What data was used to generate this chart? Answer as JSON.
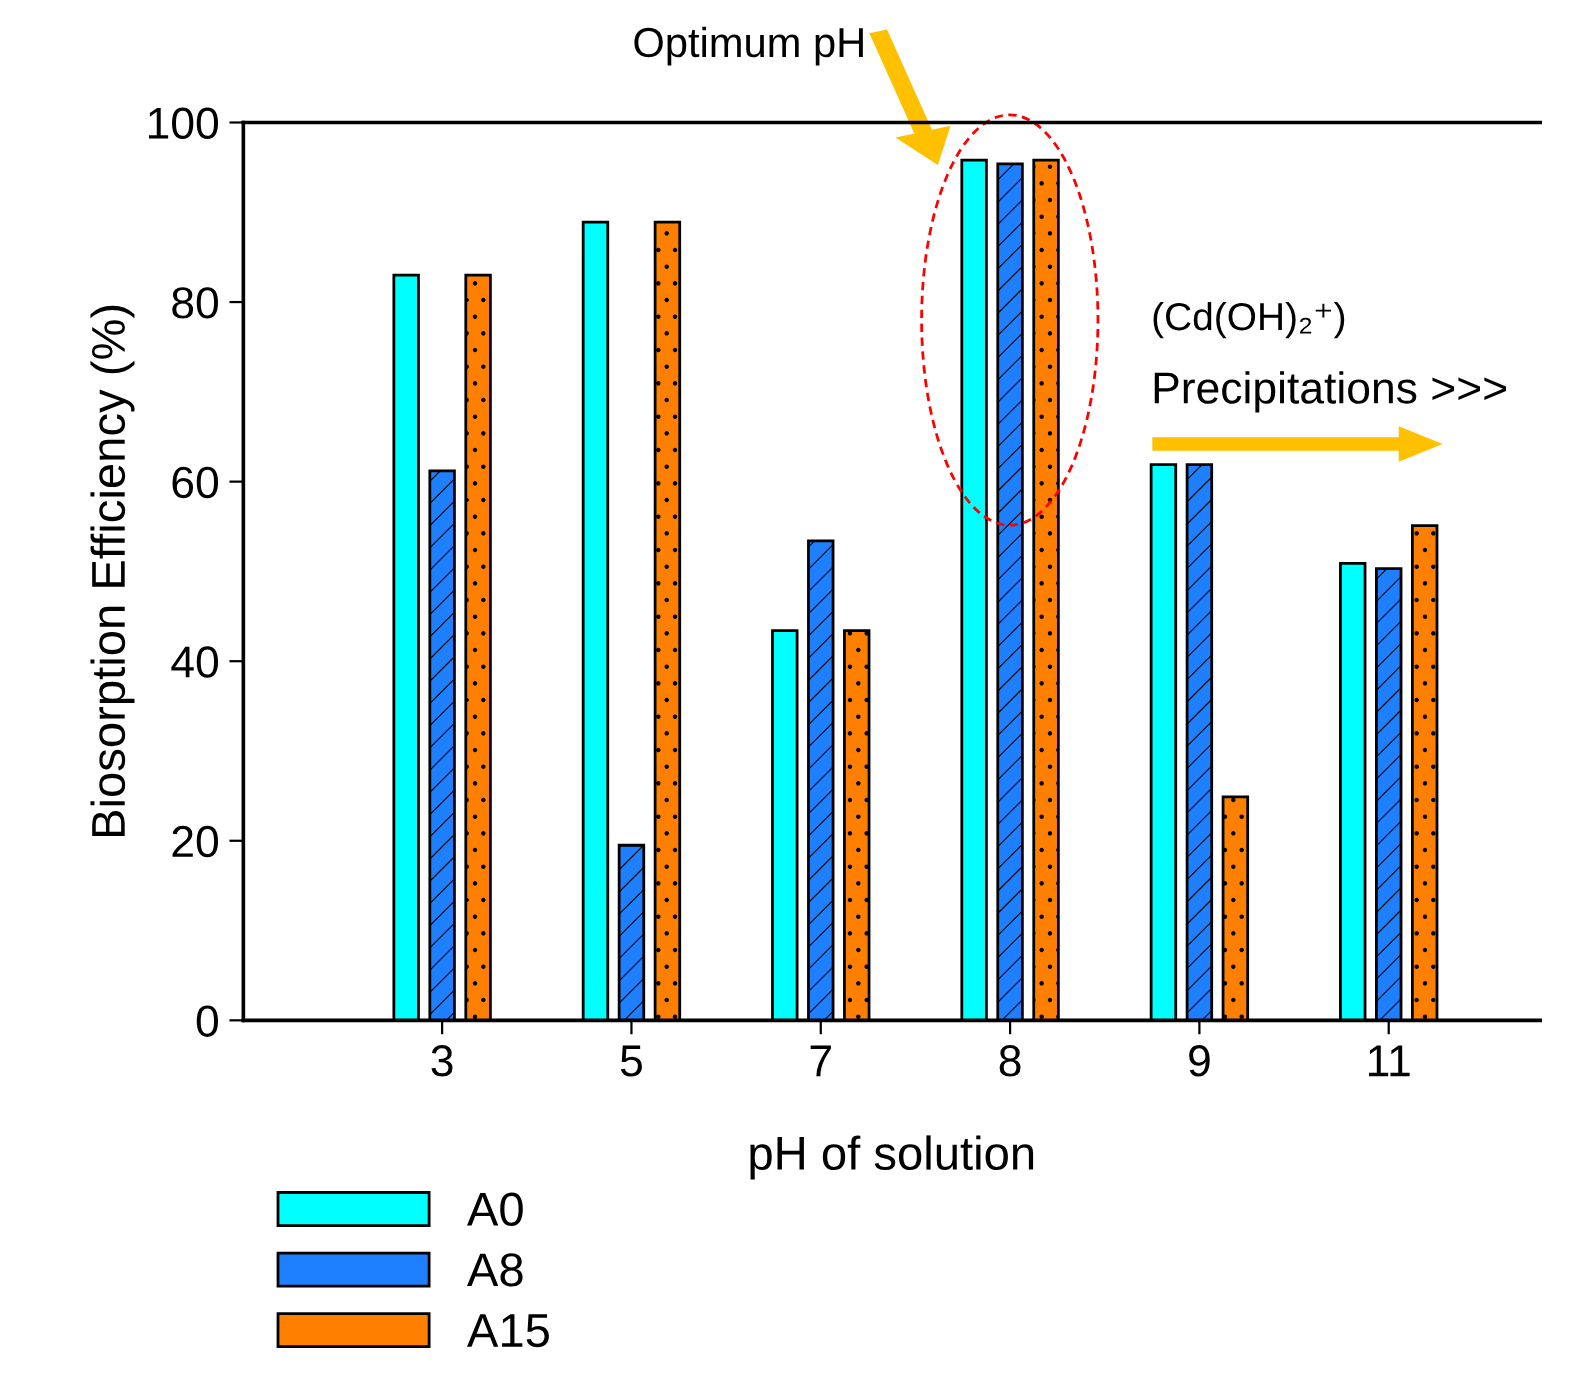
{
  "chart_data": {
    "type": "bar",
    "xlabel": "pH of solution",
    "ylabel": "Biosorption Efficiency (%)",
    "categories": [
      "3",
      "5",
      "7",
      "8",
      "9",
      "11"
    ],
    "series": [
      {
        "name": "A0",
        "color": "#00ffff",
        "values": [
          83.0,
          88.9,
          43.4,
          95.8,
          61.9,
          50.9
        ]
      },
      {
        "name": "A8",
        "color": "#1e7fff",
        "values": [
          61.2,
          19.5,
          53.4,
          95.4,
          61.9,
          50.3
        ]
      },
      {
        "name": "A15",
        "color": "#ff8000",
        "values": [
          83.0,
          88.9,
          43.4,
          95.8,
          24.9,
          55.1
        ]
      }
    ],
    "ylim": [
      0,
      100
    ],
    "yticks": [
      0,
      20,
      40,
      60,
      80,
      100
    ],
    "grid": false,
    "legend": "bottom left",
    "annotations": [
      "Optimum pH",
      "(Cd(OH)₂⁺)",
      "Precipitations >>>"
    ]
  }
}
